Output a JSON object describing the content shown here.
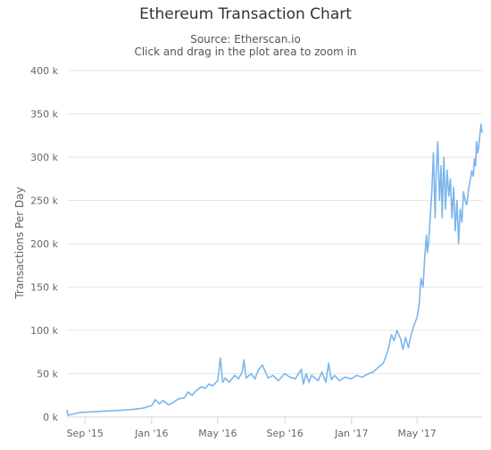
{
  "chart_data": {
    "type": "line",
    "title": "Ethereum Transaction Chart",
    "subtitle_lines": [
      "Source: Etherscan.io",
      "Click and drag in the plot area to zoom in"
    ],
    "xlabel": "",
    "ylabel": "Transactions Per Day",
    "ylim": [
      0,
      400000
    ],
    "yticks": [
      {
        "value": 0,
        "label": "0 k"
      },
      {
        "value": 50000,
        "label": "50 k"
      },
      {
        "value": 100000,
        "label": "100 k"
      },
      {
        "value": 150000,
        "label": "150 k"
      },
      {
        "value": 200000,
        "label": "200 k"
      },
      {
        "value": 250000,
        "label": "250 k"
      },
      {
        "value": 300000,
        "label": "300 k"
      },
      {
        "value": 350000,
        "label": "350 k"
      },
      {
        "value": 400000,
        "label": "400 k"
      }
    ],
    "xlim": [
      "2015-07-30",
      "2017-08-28"
    ],
    "xticks": [
      {
        "value": "2015-09-01",
        "label": "Sep '15"
      },
      {
        "value": "2016-01-01",
        "label": "Jan '16"
      },
      {
        "value": "2016-05-01",
        "label": "May '16"
      },
      {
        "value": "2016-09-01",
        "label": "Sep '16"
      },
      {
        "value": "2017-01-01",
        "label": "Jan '17"
      },
      {
        "value": "2017-05-01",
        "label": "May '17"
      }
    ],
    "grid": "horizontal",
    "series_color": "#7cb5ec",
    "series": [
      {
        "name": "",
        "points": [
          [
            "2015-07-30",
            8000
          ],
          [
            "2015-08-01",
            2000
          ],
          [
            "2015-08-08",
            3000
          ],
          [
            "2015-08-15",
            4000
          ],
          [
            "2015-08-22",
            5000
          ],
          [
            "2015-09-01",
            5500
          ],
          [
            "2015-09-15",
            6000
          ],
          [
            "2015-10-01",
            6500
          ],
          [
            "2015-10-15",
            7000
          ],
          [
            "2015-11-01",
            7500
          ],
          [
            "2015-11-15",
            8000
          ],
          [
            "2015-12-01",
            9000
          ],
          [
            "2015-12-15",
            10000
          ],
          [
            "2016-01-01",
            13000
          ],
          [
            "2016-01-08",
            20000
          ],
          [
            "2016-01-15",
            15000
          ],
          [
            "2016-01-22",
            19000
          ],
          [
            "2016-02-01",
            14000
          ],
          [
            "2016-02-10",
            17000
          ],
          [
            "2016-02-20",
            21000
          ],
          [
            "2016-03-01",
            22000
          ],
          [
            "2016-03-08",
            29000
          ],
          [
            "2016-03-15",
            25000
          ],
          [
            "2016-03-22",
            30000
          ],
          [
            "2016-04-01",
            35000
          ],
          [
            "2016-04-08",
            33000
          ],
          [
            "2016-04-15",
            38000
          ],
          [
            "2016-04-22",
            36000
          ],
          [
            "2016-05-01",
            42000
          ],
          [
            "2016-05-06",
            68000
          ],
          [
            "2016-05-10",
            40000
          ],
          [
            "2016-05-15",
            45000
          ],
          [
            "2016-05-22",
            40000
          ],
          [
            "2016-06-01",
            48000
          ],
          [
            "2016-06-08",
            44000
          ],
          [
            "2016-06-15",
            52000
          ],
          [
            "2016-06-18",
            66000
          ],
          [
            "2016-06-22",
            45000
          ],
          [
            "2016-07-01",
            50000
          ],
          [
            "2016-07-08",
            44000
          ],
          [
            "2016-07-15",
            55000
          ],
          [
            "2016-07-22",
            60000
          ],
          [
            "2016-08-01",
            45000
          ],
          [
            "2016-08-10",
            48000
          ],
          [
            "2016-08-20",
            42000
          ],
          [
            "2016-09-01",
            50000
          ],
          [
            "2016-09-10",
            46000
          ],
          [
            "2016-09-20",
            44000
          ],
          [
            "2016-10-01",
            55000
          ],
          [
            "2016-10-05",
            38000
          ],
          [
            "2016-10-10",
            50000
          ],
          [
            "2016-10-15",
            40000
          ],
          [
            "2016-10-20",
            48000
          ],
          [
            "2016-11-01",
            42000
          ],
          [
            "2016-11-08",
            52000
          ],
          [
            "2016-11-15",
            40000
          ],
          [
            "2016-11-20",
            62000
          ],
          [
            "2016-11-25",
            43000
          ],
          [
            "2016-12-01",
            48000
          ],
          [
            "2016-12-10",
            42000
          ],
          [
            "2016-12-20",
            46000
          ],
          [
            "2017-01-01",
            44000
          ],
          [
            "2017-01-10",
            48000
          ],
          [
            "2017-01-20",
            46000
          ],
          [
            "2017-02-01",
            50000
          ],
          [
            "2017-02-10",
            52000
          ],
          [
            "2017-02-20",
            58000
          ],
          [
            "2017-02-28",
            62000
          ],
          [
            "2017-03-05",
            70000
          ],
          [
            "2017-03-10",
            80000
          ],
          [
            "2017-03-15",
            95000
          ],
          [
            "2017-03-20",
            88000
          ],
          [
            "2017-03-25",
            100000
          ],
          [
            "2017-04-01",
            90000
          ],
          [
            "2017-04-05",
            78000
          ],
          [
            "2017-04-10",
            92000
          ],
          [
            "2017-04-15",
            80000
          ],
          [
            "2017-04-20",
            95000
          ],
          [
            "2017-04-25",
            105000
          ],
          [
            "2017-05-01",
            115000
          ],
          [
            "2017-05-05",
            130000
          ],
          [
            "2017-05-08",
            160000
          ],
          [
            "2017-05-12",
            150000
          ],
          [
            "2017-05-15",
            185000
          ],
          [
            "2017-05-18",
            210000
          ],
          [
            "2017-05-20",
            190000
          ],
          [
            "2017-05-22",
            200000
          ],
          [
            "2017-05-25",
            230000
          ],
          [
            "2017-05-28",
            260000
          ],
          [
            "2017-05-31",
            305000
          ],
          [
            "2017-06-03",
            230000
          ],
          [
            "2017-06-05",
            280000
          ],
          [
            "2017-06-08",
            318000
          ],
          [
            "2017-06-11",
            250000
          ],
          [
            "2017-06-14",
            290000
          ],
          [
            "2017-06-16",
            230000
          ],
          [
            "2017-06-19",
            300000
          ],
          [
            "2017-06-22",
            240000
          ],
          [
            "2017-06-25",
            285000
          ],
          [
            "2017-06-28",
            255000
          ],
          [
            "2017-07-01",
            275000
          ],
          [
            "2017-07-04",
            230000
          ],
          [
            "2017-07-07",
            265000
          ],
          [
            "2017-07-10",
            215000
          ],
          [
            "2017-07-13",
            250000
          ],
          [
            "2017-07-16",
            200000
          ],
          [
            "2017-07-19",
            240000
          ],
          [
            "2017-07-22",
            225000
          ],
          [
            "2017-07-25",
            260000
          ],
          [
            "2017-07-28",
            250000
          ],
          [
            "2017-07-31",
            245000
          ],
          [
            "2017-08-03",
            262000
          ],
          [
            "2017-08-06",
            272000
          ],
          [
            "2017-08-09",
            284000
          ],
          [
            "2017-08-12",
            278000
          ],
          [
            "2017-08-14",
            298000
          ],
          [
            "2017-08-16",
            290000
          ],
          [
            "2017-08-18",
            318000
          ],
          [
            "2017-08-20",
            305000
          ],
          [
            "2017-08-22",
            312000
          ],
          [
            "2017-08-24",
            326000
          ],
          [
            "2017-08-26",
            338000
          ],
          [
            "2017-08-28",
            328000
          ]
        ]
      }
    ]
  }
}
